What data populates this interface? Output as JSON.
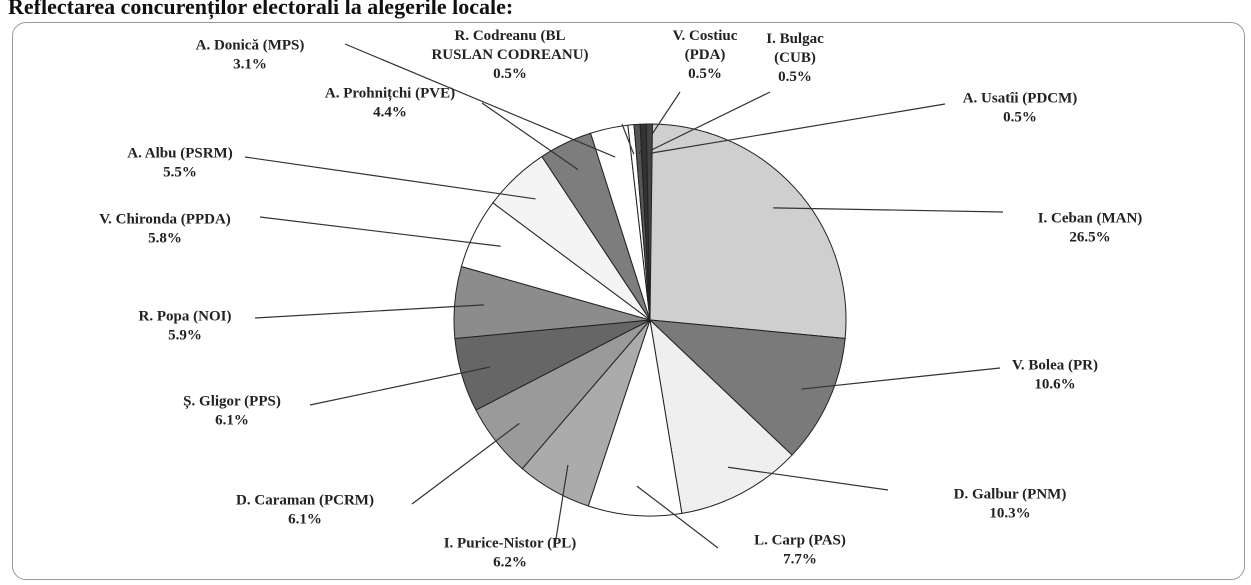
{
  "chart_data": {
    "type": "pie",
    "title": "Reflectarea concurenților electorali la alegerile locale:",
    "categories": [
      "I. Ceban (MAN)",
      "V. Bolea (PR)",
      "D. Galbur (PNM)",
      "L. Carp (PAS)",
      "I. Puricе-Nistor (PL)",
      "D. Caraman (PCRM)",
      "Ș. Gligor (PPS)",
      "R. Popa (NOI)",
      "V. Chironda (PPDA)",
      "A. Albu (PSRM)",
      "A. Prohnițchi (PVE)",
      "A. Donică (MPS)",
      "R. Codreanu (BL RUSLAN CODREANU)",
      "V. Costiuc (PDA)",
      "I. Bulgac (CUB)",
      "A. Usatîi (PDCM)"
    ],
    "values": [
      26.5,
      10.6,
      10.3,
      7.7,
      6.2,
      6.1,
      6.1,
      5.9,
      5.8,
      5.5,
      4.4,
      3.1,
      0.5,
      0.5,
      0.5,
      0.5
    ],
    "value_labels": [
      "26.5%",
      "10.6%",
      "10.3%",
      "7.7%",
      "6.2%",
      "6.1%",
      "6.1%",
      "5.9%",
      "5.8%",
      "5.5%",
      "4.4%",
      "3.1%",
      "0.5%",
      "0.5%",
      "0.5%",
      "0.5%"
    ],
    "colors": [
      "#cfcfcf",
      "#7a7a7a",
      "#efefef",
      "#ffffff",
      "#ababab",
      "#9a9a9a",
      "#666666",
      "#8c8c8c",
      "#ffffff",
      "#f4f4f4",
      "#7d7d7d",
      "#ffffff",
      "#ffffff",
      "#555555",
      "#333333",
      "#444444"
    ]
  }
}
